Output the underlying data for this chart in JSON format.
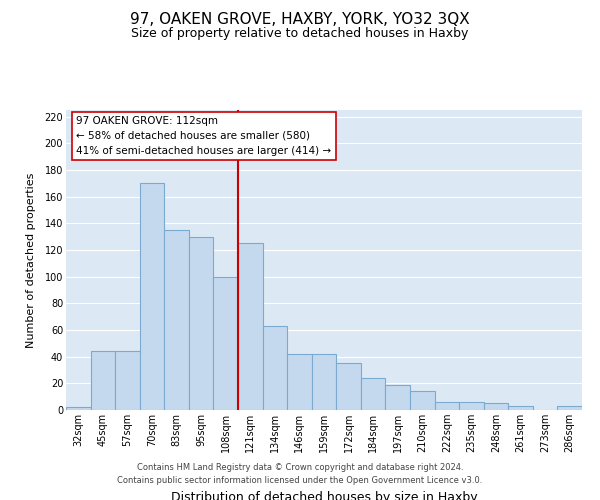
{
  "title": "97, OAKEN GROVE, HAXBY, YORK, YO32 3QX",
  "subtitle": "Size of property relative to detached houses in Haxby",
  "xlabel": "Distribution of detached houses by size in Haxby",
  "ylabel": "Number of detached properties",
  "bar_labels": [
    "32sqm",
    "45sqm",
    "57sqm",
    "70sqm",
    "83sqm",
    "95sqm",
    "108sqm",
    "121sqm",
    "134sqm",
    "146sqm",
    "159sqm",
    "172sqm",
    "184sqm",
    "197sqm",
    "210sqm",
    "222sqm",
    "235sqm",
    "248sqm",
    "261sqm",
    "273sqm",
    "286sqm"
  ],
  "bar_values": [
    2,
    44,
    44,
    170,
    135,
    130,
    100,
    125,
    63,
    42,
    42,
    35,
    24,
    19,
    14,
    6,
    6,
    5,
    3,
    0,
    3
  ],
  "bar_color": "#c5d9ee",
  "bar_edge_color": "#7aaacf",
  "vline_x_index": 7,
  "vline_color": "#cc0000",
  "annotation_text": "97 OAKEN GROVE: 112sqm\n← 58% of detached houses are smaller (580)\n41% of semi-detached houses are larger (414) →",
  "annotation_box_color": "#ffffff",
  "annotation_box_edge": "#cc0000",
  "ylim": [
    0,
    225
  ],
  "yticks": [
    0,
    20,
    40,
    60,
    80,
    100,
    120,
    140,
    160,
    180,
    200,
    220
  ],
  "footer_line1": "Contains HM Land Registry data © Crown copyright and database right 2024.",
  "footer_line2": "Contains public sector information licensed under the Open Government Licence v3.0.",
  "plot_bg_color": "#dce9f5",
  "fig_bg_color": "#ffffff",
  "grid_color": "#ffffff",
  "title_fontsize": 11,
  "subtitle_fontsize": 9,
  "xlabel_fontsize": 9,
  "ylabel_fontsize": 8,
  "tick_fontsize": 7,
  "footer_fontsize": 6,
  "annotation_fontsize": 7.5
}
